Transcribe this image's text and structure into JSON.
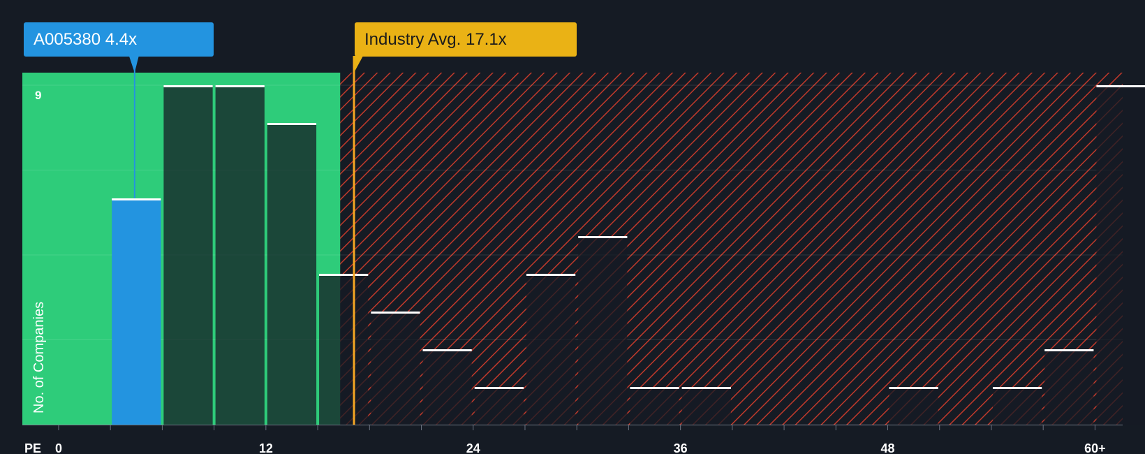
{
  "callouts": {
    "company": "A005380 4.4x",
    "industry": "Industry Avg. 17.1x"
  },
  "colors": {
    "background": "#151b24",
    "undervalued_zone": "#2ecc7a",
    "overvalued_hatch": "#c0392b",
    "company_bar": "#2394e0",
    "industry_line": "#f5a623",
    "bar_cap": "#ffffff"
  },
  "chart_data": {
    "type": "bar",
    "xlabel": "PE",
    "ylabel": "No. of Companies",
    "x_ticks": [
      "0",
      "12",
      "24",
      "36",
      "48",
      "60+"
    ],
    "x_tick_values": [
      0,
      12,
      24,
      36,
      48,
      60
    ],
    "y_ticks": [
      "9"
    ],
    "ylim": [
      0,
      9
    ],
    "xlim": [
      -2.1,
      61.6
    ],
    "bin_width": 3,
    "bins": [
      {
        "start": 3,
        "count": 6,
        "highlight": true
      },
      {
        "start": 6,
        "count": 9
      },
      {
        "start": 9,
        "count": 9
      },
      {
        "start": 12,
        "count": 8
      },
      {
        "start": 15,
        "count": 4
      },
      {
        "start": 18,
        "count": 3
      },
      {
        "start": 21,
        "count": 2
      },
      {
        "start": 24,
        "count": 1
      },
      {
        "start": 27,
        "count": 4
      },
      {
        "start": 30,
        "count": 5
      },
      {
        "start": 33,
        "count": 1
      },
      {
        "start": 36,
        "count": 1
      },
      {
        "start": 48,
        "count": 1
      },
      {
        "start": 54,
        "count": 1
      },
      {
        "start": 57,
        "count": 2
      },
      {
        "start": 60,
        "count": 9
      }
    ],
    "company_pe": 4.4,
    "industry_avg_pe": 17.1,
    "fair_zone_end": 16.3
  }
}
